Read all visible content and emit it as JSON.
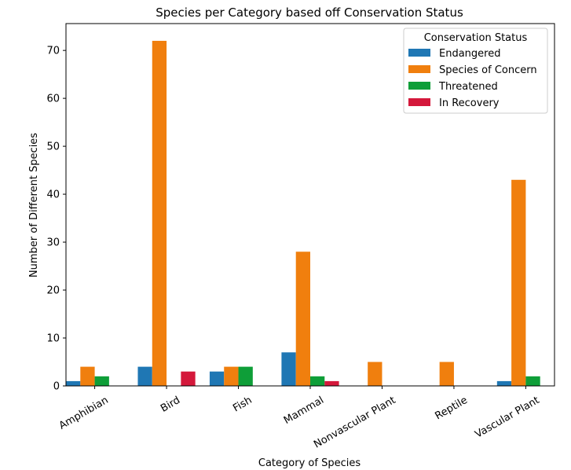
{
  "chart_data": {
    "type": "bar",
    "title": "Species per Category based off Conservation Status",
    "xlabel": "Category of Species",
    "ylabel": "Number of Different Species",
    "categories": [
      "Amphibian",
      "Bird",
      "Fish",
      "Mammal",
      "Nonvascular Plant",
      "Reptile",
      "Vascular Plant"
    ],
    "ylim": [
      0,
      75.6
    ],
    "yticks": [
      0,
      10,
      20,
      30,
      40,
      50,
      60,
      70
    ],
    "grid": false,
    "legend": {
      "title": "Conservation Status",
      "placement": "top-right"
    },
    "series": [
      {
        "name": "Endangered",
        "color": "#1f77b4",
        "values": [
          1,
          4,
          3,
          7,
          0,
          0,
          1
        ]
      },
      {
        "name": "Species of Concern",
        "color": "#f07f0e",
        "values": [
          4,
          72,
          4,
          28,
          5,
          5,
          43
        ]
      },
      {
        "name": "Threatened",
        "color": "#0e9e38",
        "values": [
          2,
          0,
          4,
          2,
          0,
          0,
          2
        ]
      },
      {
        "name": "In Recovery",
        "color": "#d4183b",
        "values": [
          0,
          3,
          0,
          1,
          0,
          0,
          0
        ]
      }
    ]
  }
}
